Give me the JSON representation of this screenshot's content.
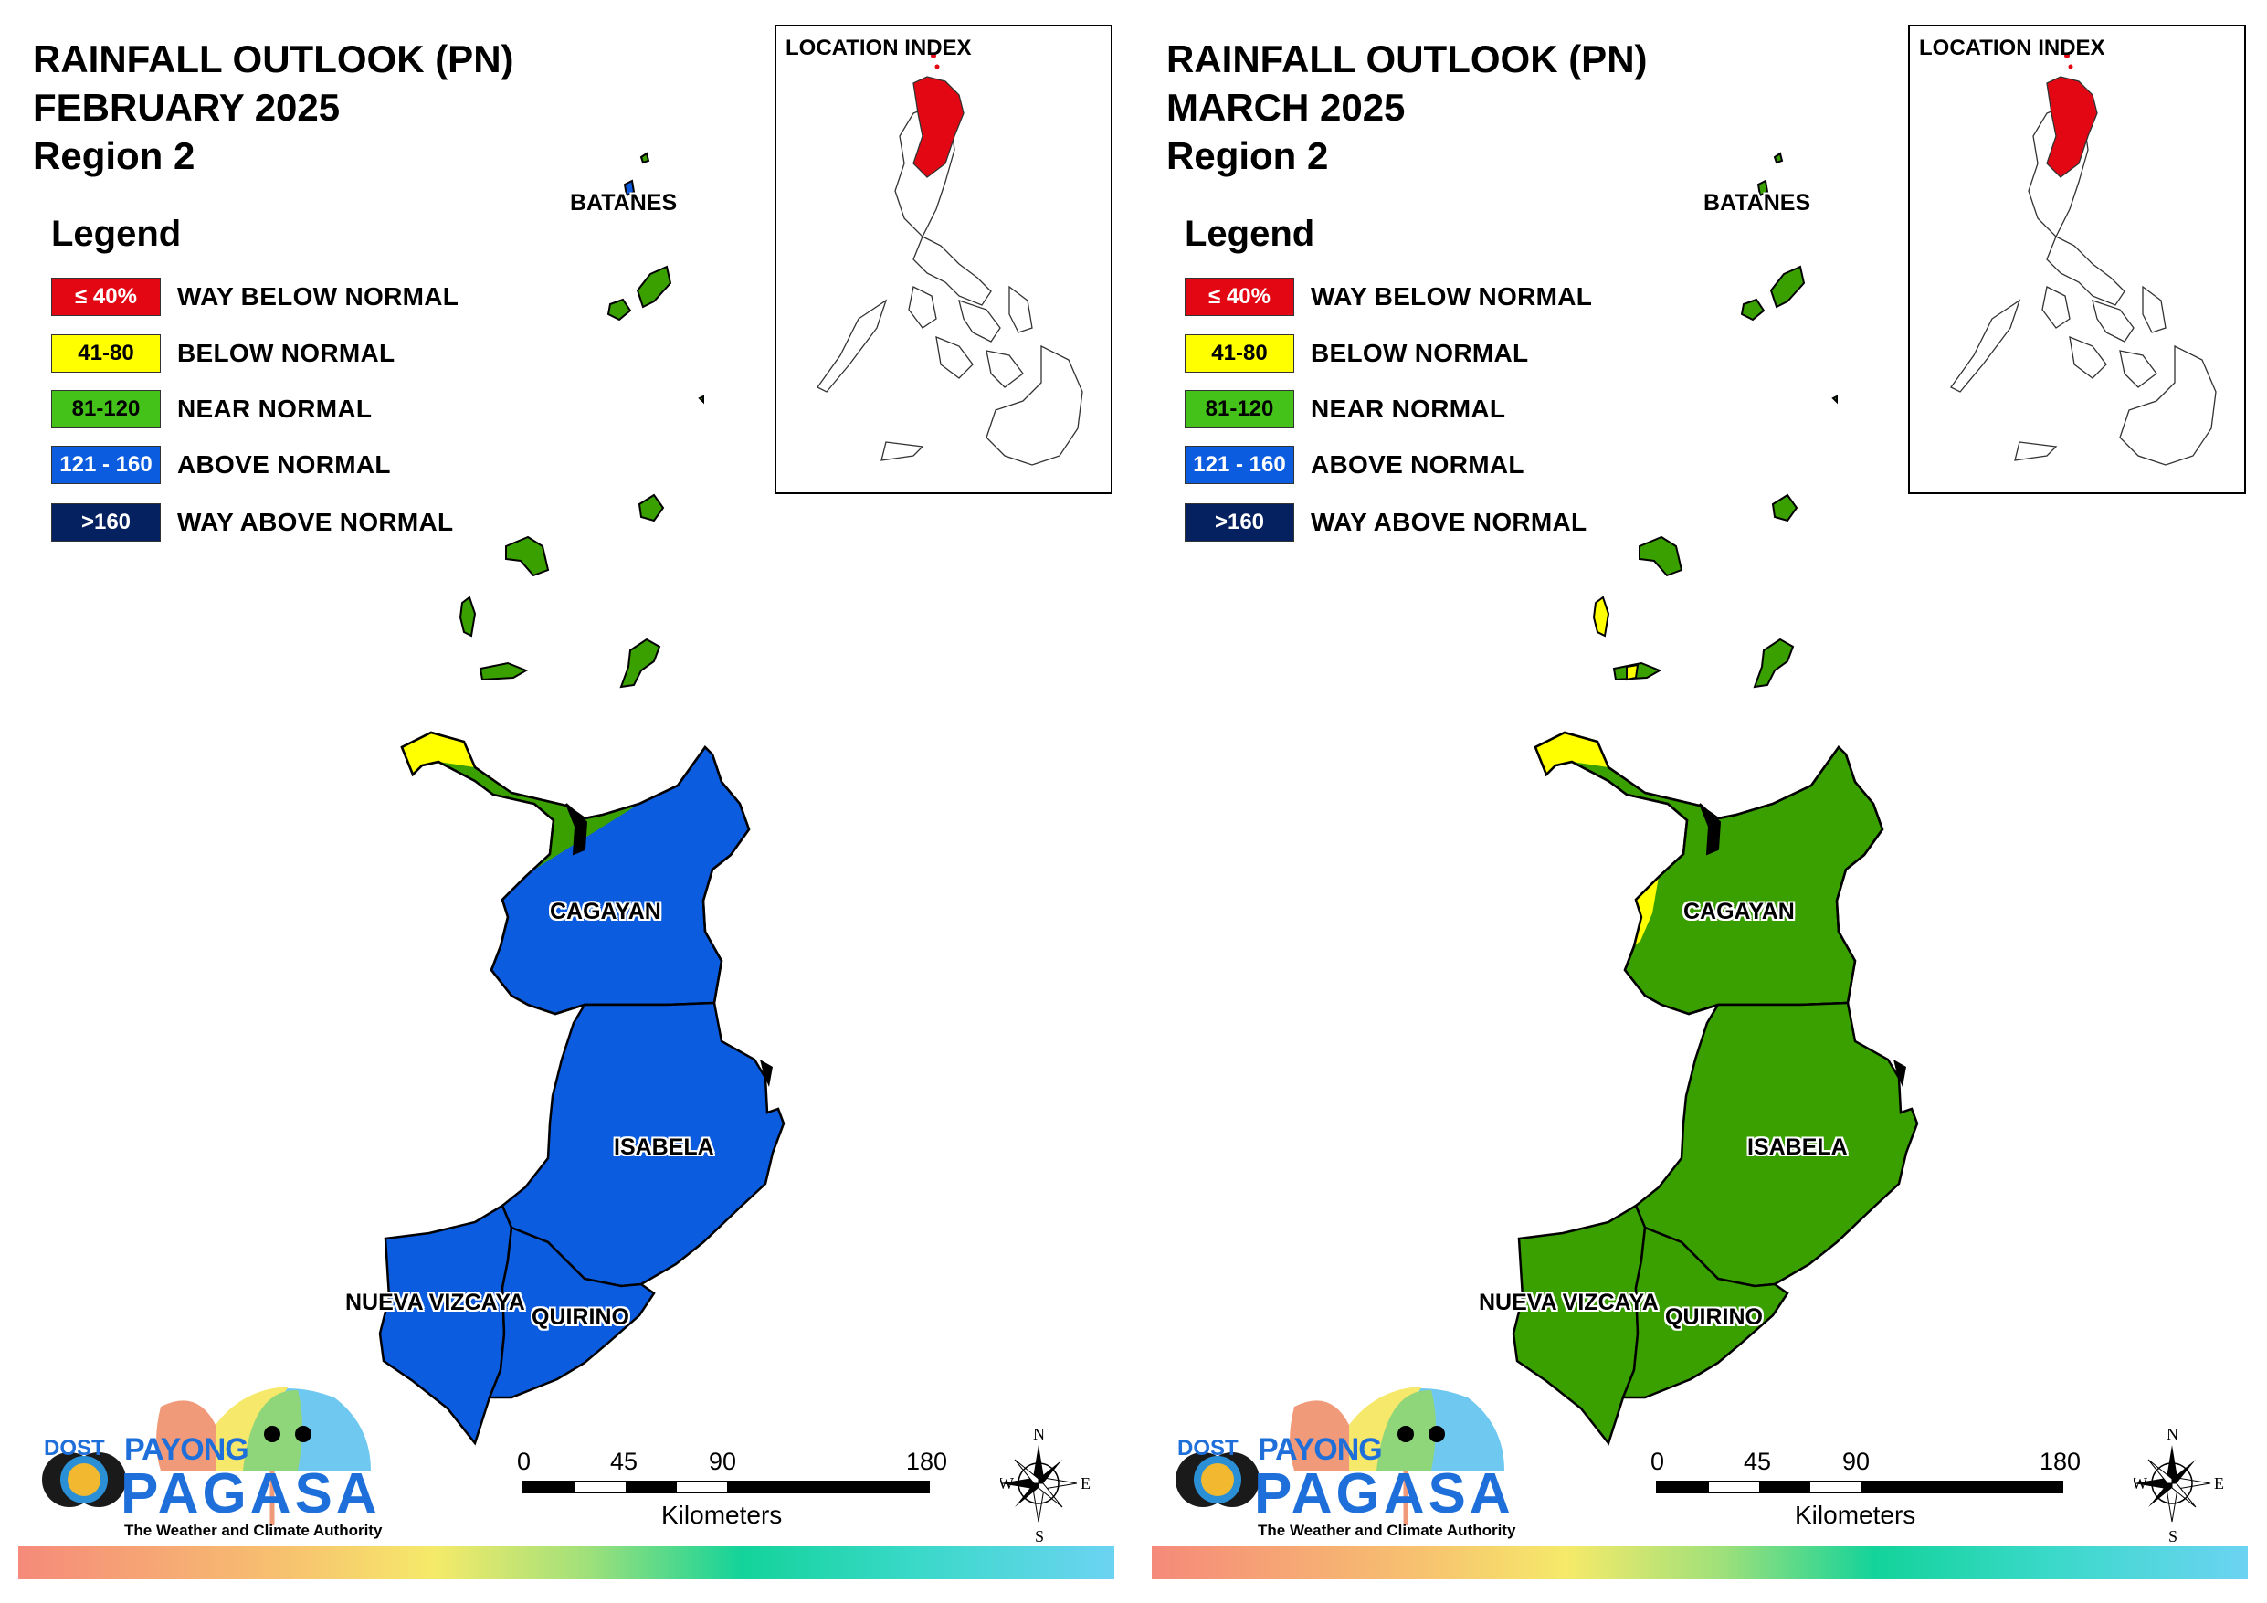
{
  "colors": {
    "way_below_normal": "#e30613",
    "below_normal": "#ffff00",
    "near_normal": "#3aa000",
    "above_normal": "#0c5ce0",
    "way_above_normal": "#06215f"
  },
  "panels": [
    {
      "title_line1": "RAINFALL OUTLOOK (PN)",
      "title_line2": "FEBRUARY 2025",
      "title_line3": "Region 2",
      "legend_title": "Legend",
      "legend": [
        {
          "swatch": "≤ 40%",
          "label": "WAY BELOW NORMAL"
        },
        {
          "swatch": "41-80",
          "label": "BELOW NORMAL"
        },
        {
          "swatch": "81-120",
          "label": "NEAR NORMAL"
        },
        {
          "swatch": "121 - 160",
          "label": "ABOVE NORMAL"
        },
        {
          "swatch": ">160",
          "label": "WAY ABOVE NORMAL"
        }
      ],
      "location_index": "LOCATION INDEX",
      "provinces": {
        "batanes": {
          "label": "BATANES",
          "category": "near_normal"
        },
        "cagayan": {
          "label": "CAGAYAN",
          "category": "above_normal"
        },
        "isabela": {
          "label": "ISABELA",
          "category": "above_normal"
        },
        "nueva_vizcaya": {
          "label": "NUEVA VIZCAYA",
          "category": "above_normal"
        },
        "quirino": {
          "label": "QUIRINO",
          "category": "above_normal"
        }
      },
      "scale": {
        "ticks": [
          "0",
          "45",
          "90",
          "180"
        ],
        "unit": "Kilometers"
      },
      "compass": {
        "n": "N",
        "s": "S",
        "e": "E",
        "w": "W"
      },
      "brand": {
        "dost": "DOST",
        "payong": "PAYONG",
        "pagasa": "PAGASA",
        "tagline": "The Weather and Climate Authority"
      }
    },
    {
      "title_line1": "RAINFALL OUTLOOK (PN)",
      "title_line2": "MARCH 2025",
      "title_line3": "Region 2",
      "legend_title": "Legend",
      "legend": [
        {
          "swatch": "≤ 40%",
          "label": "WAY BELOW NORMAL"
        },
        {
          "swatch": "41-80",
          "label": "BELOW NORMAL"
        },
        {
          "swatch": "81-120",
          "label": "NEAR NORMAL"
        },
        {
          "swatch": "121 - 160",
          "label": "ABOVE NORMAL"
        },
        {
          "swatch": ">160",
          "label": "WAY ABOVE NORMAL"
        }
      ],
      "location_index": "LOCATION INDEX",
      "provinces": {
        "batanes": {
          "label": "BATANES",
          "category": "near_normal"
        },
        "cagayan": {
          "label": "CAGAYAN",
          "category": "near_normal"
        },
        "isabela": {
          "label": "ISABELA",
          "category": "near_normal"
        },
        "nueva_vizcaya": {
          "label": "NUEVA VIZCAYA",
          "category": "near_normal"
        },
        "quirino": {
          "label": "QUIRINO",
          "category": "near_normal"
        }
      },
      "scale": {
        "ticks": [
          "0",
          "45",
          "90",
          "180"
        ],
        "unit": "Kilometers"
      },
      "compass": {
        "n": "N",
        "s": "S",
        "e": "E",
        "w": "W"
      },
      "brand": {
        "dost": "DOST",
        "payong": "PAYONG",
        "pagasa": "PAGASA",
        "tagline": "The Weather and Climate Authority"
      }
    }
  ]
}
